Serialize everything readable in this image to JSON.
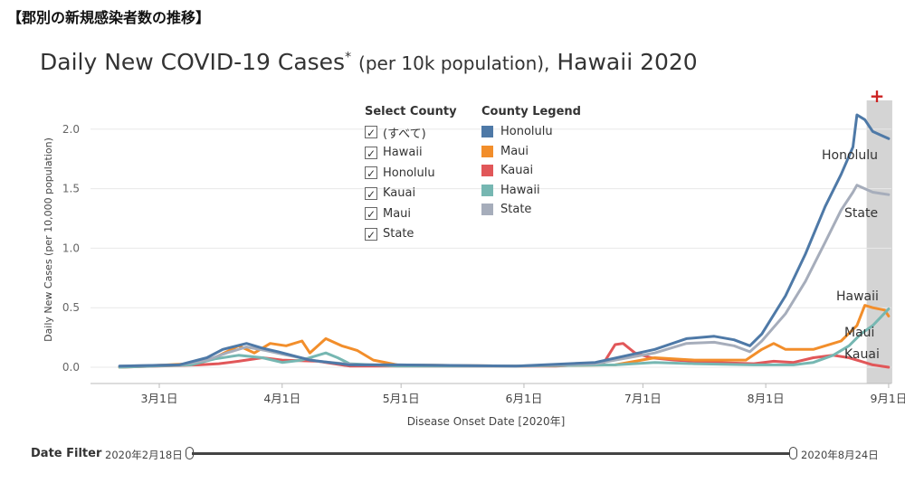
{
  "heading": "【郡別の新規感染者数の推移】",
  "title": {
    "main": "Daily New COVID-19 Cases",
    "asterisk": "*",
    "per": "(per 10k population),",
    "region": "Hawaii 2020"
  },
  "select_county": {
    "title": "Select County",
    "items": [
      {
        "label": "(すべて)",
        "checked": true
      },
      {
        "label": "Hawaii",
        "checked": true
      },
      {
        "label": "Honolulu",
        "checked": true
      },
      {
        "label": "Kauai",
        "checked": true
      },
      {
        "label": "Maui",
        "checked": true
      },
      {
        "label": "State",
        "checked": true
      }
    ]
  },
  "county_legend": {
    "title": "County Legend",
    "items": [
      {
        "label": "Honolulu",
        "color": "#4e79a7"
      },
      {
        "label": "Maui",
        "color": "#f28e2b"
      },
      {
        "label": "Kauai",
        "color": "#e15759"
      },
      {
        "label": "Hawaii",
        "color": "#76b7b2"
      },
      {
        "label": "State",
        "color": "#a6adbb"
      }
    ]
  },
  "date_filter": {
    "label": "Date Filter",
    "start": "2020年2月18日",
    "end": "2020年8月24日"
  },
  "highlight_marker": "+",
  "chart_data": {
    "type": "line",
    "xlabel": "Disease Onset Date [2020年]",
    "ylabel": "Daily New Cases (per 10,000 population)",
    "ylim": [
      0,
      2.2
    ],
    "yticks": [
      "0.0",
      "0.5",
      "1.0",
      "1.5",
      "2.0"
    ],
    "xticks": [
      {
        "label": "3月1日",
        "day": 0
      },
      {
        "label": "4月1日",
        "day": 31
      },
      {
        "label": "5月1日",
        "day": 61
      },
      {
        "label": "6月1日",
        "day": 92
      },
      {
        "label": "7月1日",
        "day": 122
      },
      {
        "label": "8月1日",
        "day": 153
      },
      {
        "label": "9月1日",
        "day": 184
      }
    ],
    "xlim": [
      -11,
      184
    ],
    "highlight_range": [
      178,
      184
    ],
    "series": [
      {
        "name": "Honolulu",
        "color": "#4e79a7",
        "end_label": "Honolulu",
        "points": [
          [
            -10,
            0.01
          ],
          [
            5,
            0.02
          ],
          [
            12,
            0.08
          ],
          [
            16,
            0.15
          ],
          [
            22,
            0.2
          ],
          [
            26,
            0.16
          ],
          [
            30,
            0.13
          ],
          [
            38,
            0.06
          ],
          [
            48,
            0.02
          ],
          [
            60,
            0.02
          ],
          [
            90,
            0.01
          ],
          [
            110,
            0.04
          ],
          [
            125,
            0.15
          ],
          [
            133,
            0.24
          ],
          [
            140,
            0.26
          ],
          [
            145,
            0.23
          ],
          [
            149,
            0.18
          ],
          [
            152,
            0.28
          ],
          [
            158,
            0.6
          ],
          [
            163,
            0.95
          ],
          [
            168,
            1.35
          ],
          [
            172,
            1.62
          ],
          [
            175,
            1.85
          ],
          [
            176,
            2.12
          ],
          [
            178,
            2.08
          ],
          [
            180,
            1.98
          ],
          [
            182,
            1.95
          ],
          [
            184,
            1.92
          ]
        ]
      },
      {
        "name": "State",
        "color": "#a6adbb",
        "end_label": "State",
        "points": [
          [
            -10,
            0.01
          ],
          [
            5,
            0.02
          ],
          [
            12,
            0.06
          ],
          [
            17,
            0.12
          ],
          [
            22,
            0.17
          ],
          [
            27,
            0.14
          ],
          [
            31,
            0.11
          ],
          [
            40,
            0.05
          ],
          [
            50,
            0.02
          ],
          [
            60,
            0.02
          ],
          [
            90,
            0.01
          ],
          [
            110,
            0.03
          ],
          [
            125,
            0.12
          ],
          [
            133,
            0.2
          ],
          [
            140,
            0.21
          ],
          [
            145,
            0.18
          ],
          [
            149,
            0.13
          ],
          [
            152,
            0.22
          ],
          [
            158,
            0.45
          ],
          [
            163,
            0.72
          ],
          [
            168,
            1.05
          ],
          [
            172,
            1.32
          ],
          [
            175,
            1.47
          ],
          [
            176,
            1.53
          ],
          [
            178,
            1.5
          ],
          [
            180,
            1.47
          ],
          [
            182,
            1.46
          ],
          [
            184,
            1.45
          ]
        ]
      },
      {
        "name": "Hawaii",
        "color": "#76b7b2",
        "end_label": "Hawaii",
        "points": [
          [
            -10,
            0.0
          ],
          [
            8,
            0.02
          ],
          [
            14,
            0.07
          ],
          [
            20,
            0.1
          ],
          [
            26,
            0.08
          ],
          [
            31,
            0.04
          ],
          [
            36,
            0.06
          ],
          [
            42,
            0.12
          ],
          [
            45,
            0.08
          ],
          [
            48,
            0.03
          ],
          [
            60,
            0.01
          ],
          [
            90,
            0.01
          ],
          [
            115,
            0.02
          ],
          [
            125,
            0.04
          ],
          [
            135,
            0.03
          ],
          [
            150,
            0.02
          ],
          [
            160,
            0.02
          ],
          [
            165,
            0.04
          ],
          [
            170,
            0.1
          ],
          [
            174,
            0.18
          ],
          [
            177,
            0.28
          ],
          [
            180,
            0.35
          ],
          [
            182,
            0.42
          ],
          [
            184,
            0.49
          ]
        ]
      },
      {
        "name": "Maui",
        "color": "#f28e2b",
        "end_label": "Maui",
        "points": [
          [
            -10,
            0.0
          ],
          [
            8,
            0.03
          ],
          [
            14,
            0.08
          ],
          [
            20,
            0.18
          ],
          [
            24,
            0.12
          ],
          [
            28,
            0.2
          ],
          [
            32,
            0.18
          ],
          [
            36,
            0.22
          ],
          [
            38,
            0.12
          ],
          [
            42,
            0.24
          ],
          [
            46,
            0.18
          ],
          [
            50,
            0.14
          ],
          [
            54,
            0.06
          ],
          [
            60,
            0.02
          ],
          [
            90,
            0.01
          ],
          [
            115,
            0.02
          ],
          [
            125,
            0.08
          ],
          [
            135,
            0.06
          ],
          [
            148,
            0.06
          ],
          [
            152,
            0.15
          ],
          [
            155,
            0.2
          ],
          [
            158,
            0.15
          ],
          [
            165,
            0.15
          ],
          [
            172,
            0.22
          ],
          [
            176,
            0.35
          ],
          [
            178,
            0.52
          ],
          [
            180,
            0.5
          ],
          [
            183,
            0.48
          ],
          [
            184,
            0.43
          ]
        ]
      },
      {
        "name": "Kauai",
        "color": "#e15759",
        "end_label": "Kauai",
        "points": [
          [
            -10,
            0.0
          ],
          [
            10,
            0.02
          ],
          [
            15,
            0.03
          ],
          [
            20,
            0.05
          ],
          [
            26,
            0.08
          ],
          [
            31,
            0.06
          ],
          [
            40,
            0.05
          ],
          [
            48,
            0.01
          ],
          [
            60,
            0.01
          ],
          [
            100,
            0.01
          ],
          [
            112,
            0.03
          ],
          [
            115,
            0.19
          ],
          [
            117,
            0.2
          ],
          [
            120,
            0.12
          ],
          [
            124,
            0.08
          ],
          [
            130,
            0.06
          ],
          [
            140,
            0.04
          ],
          [
            150,
            0.03
          ],
          [
            155,
            0.05
          ],
          [
            160,
            0.04
          ],
          [
            165,
            0.08
          ],
          [
            170,
            0.1
          ],
          [
            174,
            0.08
          ],
          [
            177,
            0.05
          ],
          [
            180,
            0.02
          ],
          [
            184,
            0.0
          ]
        ]
      }
    ]
  }
}
